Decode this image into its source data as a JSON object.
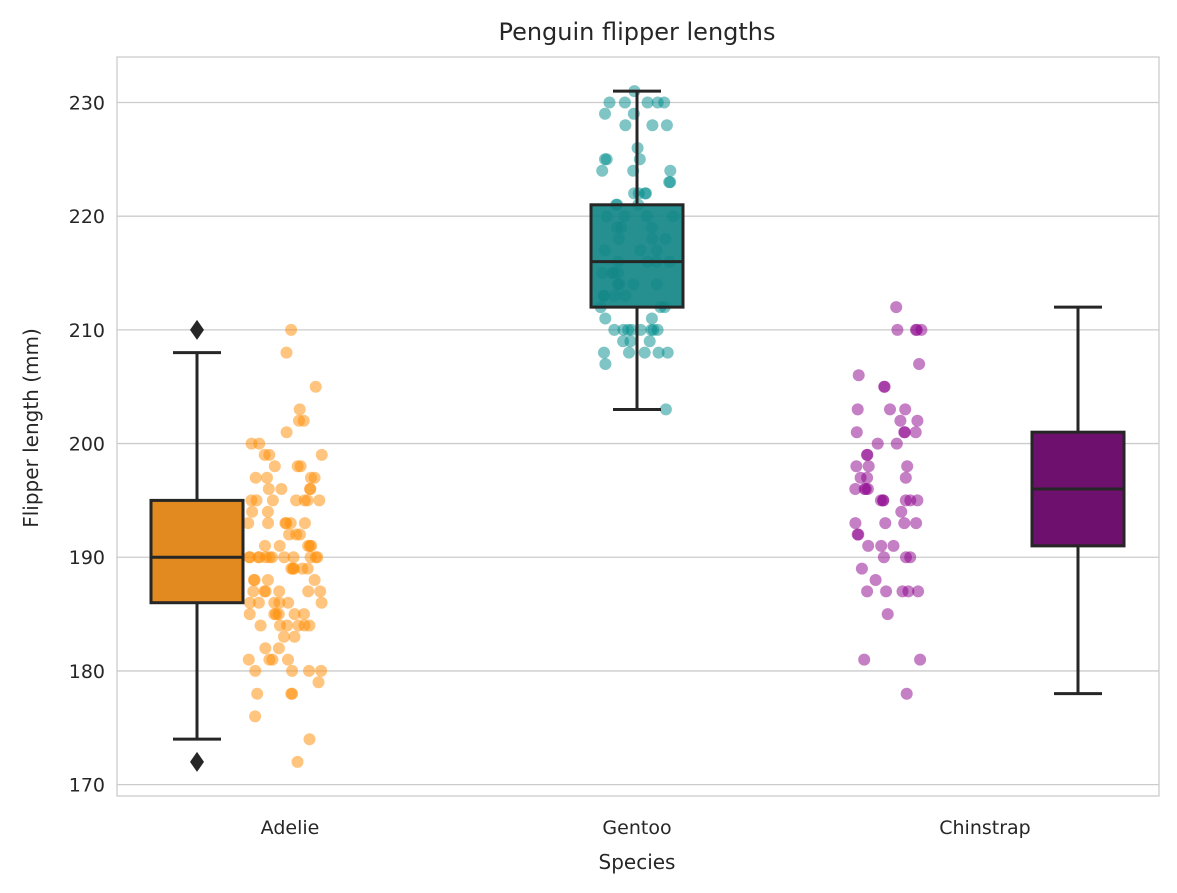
{
  "chart_data": {
    "type": "box-strip",
    "title": "Penguin flipper lengths",
    "xlabel": "Species",
    "ylabel": "Flipper length (mm)",
    "ylim": [
      169,
      234
    ],
    "yticks": [
      170,
      180,
      190,
      200,
      210,
      220,
      230
    ],
    "grid": "horizontal",
    "categories": [
      "Adelie",
      "Gentoo",
      "Chinstrap"
    ],
    "colors": {
      "Adelie": {
        "box": "#e28a20",
        "points": "#ff8c00"
      },
      "Gentoo": {
        "box": "#138585",
        "points": "#008b8b"
      },
      "Chinstrap": {
        "box": "#6e116e",
        "points": "#8b008b"
      }
    },
    "box_stats": [
      {
        "name": "Adelie",
        "whisker_low": 174,
        "q1": 186,
        "median": 190,
        "q3": 195,
        "whisker_high": 208,
        "outliers": [
          172,
          210
        ]
      },
      {
        "name": "Gentoo",
        "whisker_low": 203,
        "q1": 212,
        "median": 216,
        "q3": 221,
        "whisker_high": 231,
        "outliers": []
      },
      {
        "name": "Chinstrap",
        "whisker_low": 178,
        "q1": 191,
        "median": 196,
        "q3": 201,
        "whisker_high": 212,
        "outliers": []
      }
    ],
    "points": {
      "Adelie": [
        210,
        208,
        205,
        203,
        202,
        202,
        201,
        200,
        200,
        199,
        199,
        199,
        198,
        198,
        198,
        197,
        197,
        197,
        197,
        196,
        196,
        196,
        196,
        195,
        195,
        195,
        195,
        195,
        195,
        195,
        194,
        194,
        193,
        193,
        193,
        193,
        193,
        193,
        192,
        192,
        192,
        191,
        191,
        191,
        191,
        191,
        190,
        190,
        190,
        190,
        190,
        190,
        190,
        190,
        190,
        190,
        190,
        190,
        189,
        189,
        189,
        189,
        189,
        188,
        188,
        188,
        188,
        187,
        187,
        187,
        187,
        187,
        187,
        186,
        186,
        186,
        186,
        186,
        186,
        185,
        185,
        185,
        185,
        185,
        185,
        184,
        184,
        184,
        184,
        184,
        184,
        183,
        183,
        182,
        182,
        181,
        181,
        181,
        181,
        180,
        180,
        180,
        180,
        179,
        178,
        178,
        178,
        176,
        174,
        172
      ],
      "Gentoo": [
        231,
        230,
        230,
        230,
        230,
        230,
        229,
        229,
        228,
        228,
        228,
        226,
        225,
        225,
        225,
        224,
        224,
        224,
        223,
        223,
        222,
        222,
        222,
        222,
        221,
        221,
        221,
        220,
        220,
        220,
        220,
        219,
        219,
        219,
        218,
        218,
        218,
        217,
        217,
        217,
        216,
        216,
        216,
        216,
        215,
        215,
        215,
        215,
        214,
        214,
        214,
        214,
        213,
        213,
        213,
        213,
        212,
        212,
        212,
        211,
        211,
        210,
        210,
        210,
        210,
        210,
        210,
        210,
        210,
        209,
        209,
        209,
        208,
        208,
        208,
        208,
        208,
        207,
        203
      ],
      "Chinstrap": [
        212,
        210,
        210,
        210,
        210,
        207,
        206,
        205,
        205,
        203,
        203,
        203,
        202,
        202,
        201,
        201,
        201,
        201,
        200,
        200,
        199,
        199,
        198,
        198,
        198,
        197,
        197,
        197,
        196,
        196,
        196,
        196,
        195,
        195,
        195,
        195,
        195,
        195,
        194,
        193,
        193,
        193,
        193,
        192,
        192,
        191,
        191,
        191,
        190,
        190,
        190,
        189,
        188,
        187,
        187,
        187,
        187,
        187,
        185,
        181,
        181,
        178
      ]
    }
  }
}
